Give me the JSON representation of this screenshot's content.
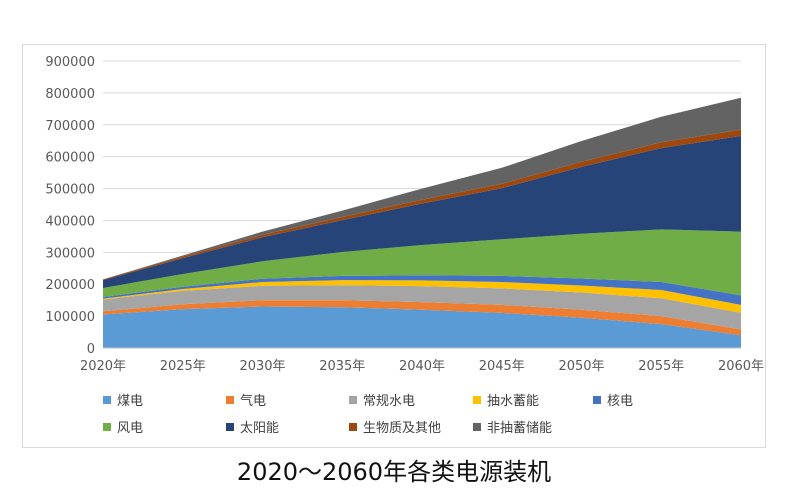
{
  "caption": "2020～2060年各类电源装机",
  "chart_data": {
    "type": "area",
    "stacked": true,
    "title": "",
    "xlabel": "",
    "ylabel": "",
    "ylim": [
      0,
      900000
    ],
    "yticks": [
      "0",
      "100000",
      "200000",
      "300000",
      "400000",
      "500000",
      "600000",
      "700000",
      "800000",
      "900000"
    ],
    "categories": [
      "2020年",
      "2025年",
      "2030年",
      "2035年",
      "2040年",
      "2045年",
      "2050年",
      "2055年",
      "2060年"
    ],
    "grid": true,
    "legend": "bottom",
    "series": [
      {
        "name": "煤电",
        "color": "#5b9bd5",
        "values": [
          105000,
          122000,
          130000,
          128000,
          120000,
          110000,
          95000,
          75000,
          40000
        ]
      },
      {
        "name": "气电",
        "color": "#ed7d31",
        "values": [
          10000,
          15000,
          20000,
          22000,
          24000,
          25000,
          25000,
          25000,
          18000
        ]
      },
      {
        "name": "常规水电",
        "color": "#a5a5a5",
        "values": [
          37000,
          42000,
          45000,
          47000,
          50000,
          52000,
          54000,
          56000,
          52000
        ]
      },
      {
        "name": "抽水蓄能",
        "color": "#ffc000",
        "values": [
          3000,
          6000,
          12000,
          16000,
          18000,
          20000,
          22000,
          26000,
          25000
        ]
      },
      {
        "name": "核电",
        "color": "#4472c4",
        "values": [
          5000,
          7000,
          10000,
          13000,
          16000,
          19000,
          22000,
          25000,
          30000
        ]
      },
      {
        "name": "风电",
        "color": "#70ad47",
        "values": [
          28000,
          40000,
          55000,
          75000,
          95000,
          115000,
          140000,
          165000,
          200000
        ]
      },
      {
        "name": "太阳能",
        "color": "#264478",
        "values": [
          25000,
          50000,
          75000,
          100000,
          130000,
          160000,
          210000,
          255000,
          300000
        ]
      },
      {
        "name": "生物质及其他",
        "color": "#9e480e",
        "values": [
          2000,
          5000,
          8000,
          10000,
          12000,
          14000,
          16000,
          18000,
          20000
        ]
      },
      {
        "name": "非抽蓄储能",
        "color": "#636363",
        "values": [
          0,
          3000,
          10000,
          20000,
          35000,
          50000,
          65000,
          80000,
          100000
        ]
      }
    ]
  }
}
